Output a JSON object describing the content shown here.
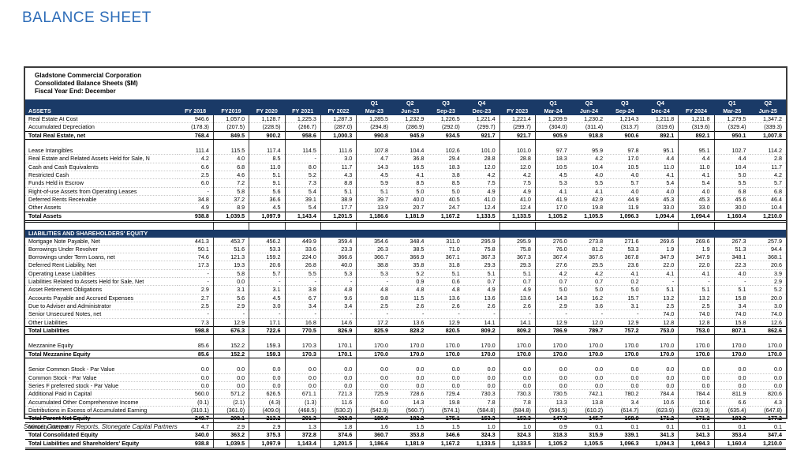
{
  "page_title": "BALANCE SHEET",
  "source_note": "Source: Company Reports, Stonegate Capital Partners",
  "table": {
    "company_lines": [
      "Gladstone Commercial Corporation",
      "Consolidated Balance Sheets ($M)",
      "Fiscal Year End: December"
    ],
    "assets_header": "ASSETS",
    "columns": [
      {
        "q": "",
        "label": "FY 2018",
        "sep": true
      },
      {
        "q": "",
        "label": "FY2019",
        "sep": true
      },
      {
        "q": "",
        "label": "FY 2020",
        "sep": true
      },
      {
        "q": "",
        "label": "FY 2021",
        "sep": true
      },
      {
        "q": "",
        "label": "FY 2022",
        "sep": true
      },
      {
        "q": "Q1",
        "label": "Mar-23",
        "sep": true
      },
      {
        "q": "Q2",
        "label": "Jun-23",
        "sep": false
      },
      {
        "q": "Q3",
        "label": "Sep-23",
        "sep": false
      },
      {
        "q": "Q4",
        "label": "Dec-23",
        "sep": false
      },
      {
        "q": "",
        "label": "FY 2023",
        "sep": true
      },
      {
        "q": "Q1",
        "label": "Mar-24",
        "sep": true
      },
      {
        "q": "Q2",
        "label": "Jun-24",
        "sep": false
      },
      {
        "q": "Q3",
        "label": "Sep-24",
        "sep": false
      },
      {
        "q": "Q4",
        "label": "Dec-24",
        "sep": false
      },
      {
        "q": "",
        "label": "FY 2024",
        "sep": true
      },
      {
        "q": "Q1",
        "label": "Mar-25",
        "sep": true
      },
      {
        "q": "Q2",
        "label": "Jun-25",
        "sep": false
      }
    ],
    "rows": [
      {
        "style": "data",
        "label": "Real Estate At Cost",
        "values": [
          "946.6",
          "1,057.0",
          "1,128.7",
          "1,225.3",
          "1,287.3",
          "1,285.5",
          "1,232.9",
          "1,226.5",
          "1,221.4",
          "1,221.4",
          "1,209.9",
          "1,230.2",
          "1,214.3",
          "1,211.8",
          "1,211.8",
          "1,279.5",
          "1,347.2"
        ]
      },
      {
        "style": "data",
        "label": "Accumulated Depreciation",
        "values": [
          "(178.3)",
          "(207.5)",
          "(228.5)",
          "(266.7)",
          "(287.0)",
          "(294.8)",
          "(286.9)",
          "(292.0)",
          "(299.7)",
          "(299.7)",
          "(304.0)",
          "(311.4)",
          "(313.7)",
          "(319.6)",
          "(319.6)",
          "(329.4)",
          "(339.3)"
        ]
      },
      {
        "style": "total",
        "label": "Total Real Estate, net",
        "values": [
          "768.4",
          "849.5",
          "900.2",
          "958.6",
          "1,000.3",
          "990.8",
          "945.9",
          "934.5",
          "921.7",
          "921.7",
          "905.9",
          "918.8",
          "900.6",
          "892.1",
          "892.1",
          "950.1",
          "1,007.8"
        ]
      },
      {
        "style": "spacer"
      },
      {
        "style": "data",
        "label": "Lease Intangibles",
        "values": [
          "111.4",
          "115.5",
          "117.4",
          "114.5",
          "111.6",
          "107.8",
          "104.4",
          "102.6",
          "101.0",
          "101.0",
          "97.7",
          "95.9",
          "97.8",
          "95.1",
          "95.1",
          "102.7",
          "114.2"
        ]
      },
      {
        "style": "data",
        "label": "Real Estate and Related Assets Held for Sale, N",
        "values": [
          "4.2",
          "4.0",
          "8.5",
          "-",
          "3.0",
          "4.7",
          "36.8",
          "29.4",
          "28.8",
          "28.8",
          "18.3",
          "4.2",
          "17.0",
          "4.4",
          "4.4",
          "4.4",
          "2.8"
        ]
      },
      {
        "style": "data",
        "label": "Cash and Cash Equivalents",
        "values": [
          "6.6",
          "6.8",
          "11.0",
          "8.0",
          "11.7",
          "14.3",
          "16.5",
          "18.3",
          "12.0",
          "12.0",
          "10.5",
          "10.4",
          "10.5",
          "11.0",
          "11.0",
          "10.4",
          "11.7"
        ]
      },
      {
        "style": "data",
        "label": "Restricted Cash",
        "values": [
          "2.5",
          "4.6",
          "5.1",
          "5.2",
          "4.3",
          "4.5",
          "4.1",
          "3.8",
          "4.2",
          "4.2",
          "4.5",
          "4.0",
          "4.0",
          "4.1",
          "4.1",
          "5.0",
          "4.2"
        ]
      },
      {
        "style": "data",
        "label": "Funds Held in Escrow",
        "values": [
          "6.0",
          "7.2",
          "9.1",
          "7.3",
          "8.8",
          "5.9",
          "8.5",
          "8.5",
          "7.5",
          "7.5",
          "5.3",
          "5.5",
          "5.7",
          "5.4",
          "5.4",
          "5.5",
          "5.7"
        ]
      },
      {
        "style": "data",
        "label": "Right-of-use Assets from Operating Leases",
        "values": [
          "-",
          "5.8",
          "5.6",
          "5.4",
          "5.1",
          "5.1",
          "5.0",
          "5.0",
          "4.9",
          "4.9",
          "4.1",
          "4.1",
          "4.0",
          "4.0",
          "4.0",
          "6.8",
          "6.8"
        ]
      },
      {
        "style": "data",
        "label": "Deferred Rents Receivable",
        "values": [
          "34.8",
          "37.2",
          "36.6",
          "39.1",
          "38.9",
          "39.7",
          "40.0",
          "40.5",
          "41.0",
          "41.0",
          "41.9",
          "42.9",
          "44.9",
          "45.3",
          "45.3",
          "45.6",
          "46.4"
        ]
      },
      {
        "style": "data",
        "label": "Other Assets",
        "values": [
          "4.9",
          "8.9",
          "4.5",
          "5.4",
          "17.7",
          "13.9",
          "20.7",
          "24.7",
          "12.4",
          "12.4",
          "17.0",
          "19.8",
          "11.9",
          "33.0",
          "33.0",
          "30.0",
          "10.4"
        ]
      },
      {
        "style": "grandtotal",
        "label": "Total Assets",
        "values": [
          "938.8",
          "1,039.5",
          "1,097.9",
          "1,143.4",
          "1,201.5",
          "1,186.6",
          "1,181.9",
          "1,167.2",
          "1,133.5",
          "1,133.5",
          "1,105.2",
          "1,105.5",
          "1,096.3",
          "1,094.4",
          "1,094.4",
          "1,160.4",
          "1,210.0"
        ]
      },
      {
        "style": "spacer"
      },
      {
        "style": "section",
        "label": "LIABILITIES AND SHAREHOLDERS' EQUITY"
      },
      {
        "style": "data",
        "label": "Mortgage Note Payable, Net",
        "values": [
          "441.3",
          "453.7",
          "456.2",
          "449.9",
          "359.4",
          "354.6",
          "348.4",
          "311.0",
          "295.9",
          "295.9",
          "276.0",
          "273.8",
          "271.6",
          "269.6",
          "269.6",
          "267.3",
          "257.9"
        ]
      },
      {
        "style": "data",
        "label": "Borrowings Under Revolver",
        "values": [
          "50.1",
          "51.6",
          "53.3",
          "33.6",
          "23.3",
          "26.3",
          "38.5",
          "71.0",
          "75.8",
          "75.8",
          "76.0",
          "81.2",
          "53.3",
          "1.9",
          "1.9",
          "51.3",
          "94.4"
        ]
      },
      {
        "style": "data",
        "label": "Borrowings under Term Loans, net",
        "values": [
          "74.6",
          "121.3",
          "159.2",
          "224.0",
          "366.6",
          "366.7",
          "366.9",
          "367.1",
          "367.3",
          "367.3",
          "367.4",
          "367.6",
          "367.8",
          "347.9",
          "347.9",
          "348.1",
          "368.1"
        ]
      },
      {
        "style": "data",
        "label": "Deferred Rent Liability, Net",
        "values": [
          "17.3",
          "19.3",
          "20.6",
          "26.8",
          "40.0",
          "38.8",
          "35.8",
          "31.8",
          "29.3",
          "29.3",
          "27.6",
          "25.5",
          "23.6",
          "22.0",
          "22.0",
          "22.3",
          "20.6"
        ]
      },
      {
        "style": "data",
        "label": "Operating Lease Liabilities",
        "values": [
          "-",
          "5.8",
          "5.7",
          "5.5",
          "5.3",
          "5.3",
          "5.2",
          "5.1",
          "5.1",
          "5.1",
          "4.2",
          "4.2",
          "4.1",
          "4.1",
          "4.1",
          "4.0",
          "3.9"
        ]
      },
      {
        "style": "data",
        "label": "Liabilities Related to Assets Held for Sale, Net",
        "values": [
          "-",
          "0.0",
          "-",
          "-",
          "-",
          "-",
          "0.9",
          "0.6",
          "0.7",
          "0.7",
          "0.7",
          "0.7",
          "0.2",
          "-",
          "-",
          "-",
          "2.9"
        ]
      },
      {
        "style": "data",
        "label": "Asset Retirement Obligations",
        "values": [
          "2.9",
          "3.1",
          "3.1",
          "3.8",
          "4.8",
          "4.8",
          "4.8",
          "4.8",
          "4.9",
          "4.9",
          "5.0",
          "5.0",
          "5.0",
          "5.1",
          "5.1",
          "5.1",
          "5.2"
        ]
      },
      {
        "style": "data",
        "label": "Accounts Payable and Accrued Expenses",
        "values": [
          "2.7",
          "5.6",
          "4.5",
          "6.7",
          "9.6",
          "9.8",
          "11.5",
          "13.6",
          "13.6",
          "13.6",
          "14.3",
          "16.2",
          "15.7",
          "13.2",
          "13.2",
          "15.8",
          "20.0"
        ]
      },
      {
        "style": "data",
        "label": "Due to Adviser and Administrator",
        "values": [
          "2.5",
          "2.9",
          "3.0",
          "3.4",
          "3.4",
          "2.5",
          "2.6",
          "2.6",
          "2.6",
          "2.6",
          "2.9",
          "3.6",
          "3.1",
          "2.5",
          "2.5",
          "3.4",
          "3.0"
        ]
      },
      {
        "style": "data",
        "label": "Senior Unsecured Notes, net",
        "values": [
          "-",
          "-",
          "-",
          "-",
          "-",
          "-",
          "-",
          "-",
          "-",
          "-",
          "-",
          "-",
          "-",
          "74.0",
          "74.0",
          "74.0",
          "74.0"
        ]
      },
      {
        "style": "data",
        "label": "Other Liabilities",
        "values": [
          "7.3",
          "12.9",
          "17.1",
          "16.8",
          "14.6",
          "17.2",
          "13.6",
          "12.9",
          "14.1",
          "14.1",
          "12.9",
          "12.0",
          "12.9",
          "12.8",
          "12.8",
          "15.8",
          "12.6"
        ]
      },
      {
        "style": "total",
        "label": "Total Liabilities",
        "values": [
          "598.8",
          "676.3",
          "722.6",
          "770.5",
          "826.9",
          "825.9",
          "828.2",
          "820.5",
          "809.2",
          "809.2",
          "786.9",
          "789.7",
          "757.2",
          "753.0",
          "753.0",
          "807.1",
          "862.6"
        ]
      },
      {
        "style": "spacer"
      },
      {
        "style": "data",
        "label": "Mezzanine Equity",
        "values": [
          "85.6",
          "152.2",
          "159.3",
          "170.3",
          "170.1",
          "170.0",
          "170.0",
          "170.0",
          "170.0",
          "170.0",
          "170.0",
          "170.0",
          "170.0",
          "170.0",
          "170.0",
          "170.0",
          "170.0"
        ]
      },
      {
        "style": "total",
        "label": "Total Mezzanine Equity",
        "values": [
          "85.6",
          "152.2",
          "159.3",
          "170.3",
          "170.1",
          "170.0",
          "170.0",
          "170.0",
          "170.0",
          "170.0",
          "170.0",
          "170.0",
          "170.0",
          "170.0",
          "170.0",
          "170.0",
          "170.0"
        ]
      },
      {
        "style": "spacer"
      },
      {
        "style": "data",
        "label": "Senior Common Stock - Par Value",
        "values": [
          "0.0",
          "0.0",
          "0.0",
          "0.0",
          "0.0",
          "0.0",
          "0.0",
          "0.0",
          "0.0",
          "0.0",
          "0.0",
          "0.0",
          "0.0",
          "0.0",
          "0.0",
          "0.0",
          "0.0"
        ]
      },
      {
        "style": "data",
        "label": "Common Stock - Par Value",
        "values": [
          "0.0",
          "0.0",
          "0.0",
          "0.0",
          "0.0",
          "0.0",
          "0.0",
          "0.0",
          "0.0",
          "0.0",
          "0.0",
          "0.0",
          "0.0",
          "0.0",
          "0.0",
          "0.0",
          "0.0"
        ]
      },
      {
        "style": "data",
        "label": "Series F preferred stock - Par Value",
        "values": [
          "0.0",
          "0.0",
          "0.0",
          "0.0",
          "0.0",
          "0.0",
          "0.0",
          "0.0",
          "0.0",
          "0.0",
          "0.0",
          "0.0",
          "0.0",
          "0.0",
          "0.0",
          "0.0",
          "0.0"
        ]
      },
      {
        "style": "data",
        "label": "Additional Paid in Capital",
        "values": [
          "560.0",
          "571.2",
          "626.5",
          "671.1",
          "721.3",
          "725.9",
          "728.6",
          "729.4",
          "730.3",
          "730.3",
          "730.5",
          "742.1",
          "780.2",
          "784.4",
          "784.4",
          "811.9",
          "820.6"
        ]
      },
      {
        "style": "data",
        "label": "Accumulated Other Comprehensive Income",
        "values": [
          "(0.1)",
          "(2.1)",
          "(4.3)",
          "(1.3)",
          "11.6",
          "6.0",
          "14.3",
          "19.8",
          "7.8",
          "7.8",
          "13.3",
          "13.8",
          "3.4",
          "10.6",
          "10.6",
          "6.6",
          "4.3"
        ]
      },
      {
        "style": "data",
        "label": "Distributions in Excess of Accumulated Earning",
        "values": [
          "(310.1)",
          "(361.0)",
          "(409.0)",
          "(468.5)",
          "(530.2)",
          "(542.9)",
          "(560.7)",
          "(574.1)",
          "(584.8)",
          "(584.8)",
          "(596.5)",
          "(610.2)",
          "(614.7)",
          "(623.9)",
          "(623.9)",
          "(635.4)",
          "(647.8)"
        ]
      },
      {
        "style": "total",
        "label": "Total Parent Net Equity",
        "values": [
          "249.7",
          "208.1",
          "213.2",
          "201.3",
          "202.8",
          "189.0",
          "182.2",
          "175.1",
          "153.3",
          "153.3",
          "147.3",
          "145.7",
          "168.9",
          "171.2",
          "171.2",
          "183.2",
          "177.2"
        ]
      },
      {
        "style": "data",
        "label": "Minority interest",
        "values": [
          "4.7",
          "2.9",
          "2.9",
          "1.3",
          "1.8",
          "1.6",
          "1.5",
          "1.5",
          "1.0",
          "1.0",
          "0.9",
          "0.1",
          "0.1",
          "0.1",
          "0.1",
          "0.1",
          "0.1"
        ]
      },
      {
        "style": "total",
        "label": "Total Consolidated Equity",
        "values": [
          "340.0",
          "363.2",
          "375.3",
          "372.8",
          "374.6",
          "360.7",
          "353.8",
          "346.6",
          "324.3",
          "324.3",
          "318.3",
          "315.9",
          "339.1",
          "341.3",
          "341.3",
          "353.4",
          "347.4"
        ]
      },
      {
        "style": "grandtotal",
        "label": "Total Liabilities and Shareholders' Equity",
        "values": [
          "938.8",
          "1,039.5",
          "1,097.9",
          "1,143.4",
          "1,201.5",
          "1,186.6",
          "1,181.9",
          "1,167.2",
          "1,133.5",
          "1,133.5",
          "1,105.2",
          "1,105.5",
          "1,096.3",
          "1,094.3",
          "1,094.3",
          "1,160.4",
          "1,210.0"
        ]
      }
    ]
  }
}
